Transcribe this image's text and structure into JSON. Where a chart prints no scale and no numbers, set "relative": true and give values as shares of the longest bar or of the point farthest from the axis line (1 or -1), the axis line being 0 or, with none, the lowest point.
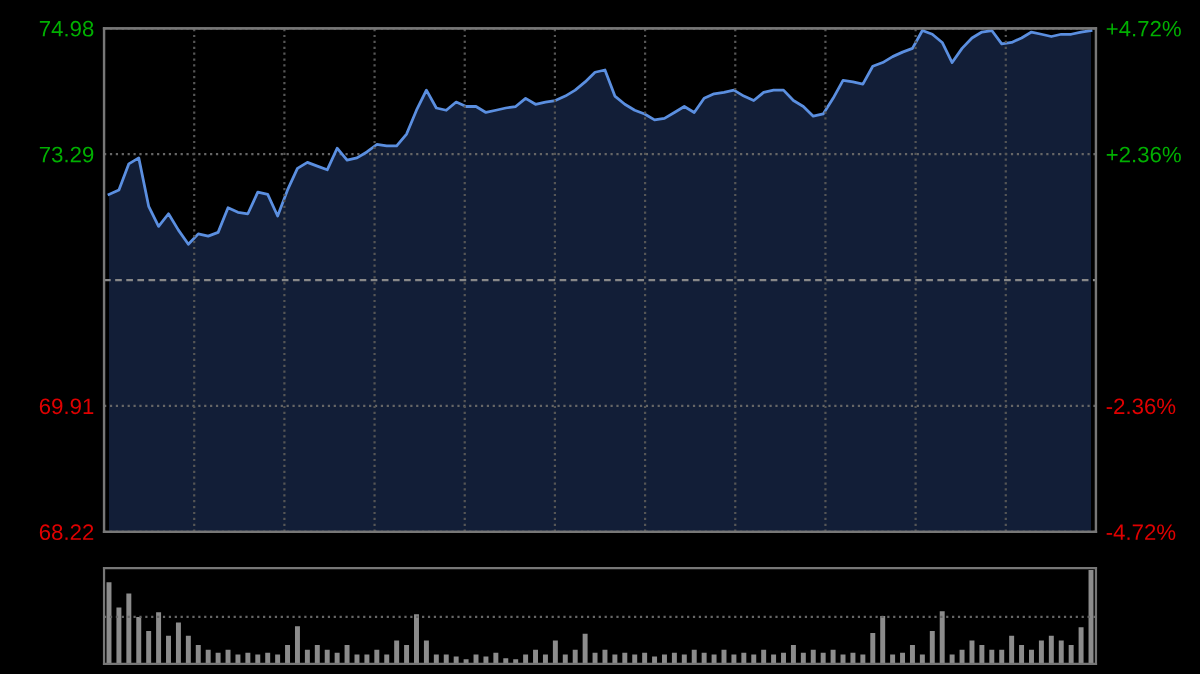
{
  "chart_data": [
    {
      "type": "area",
      "color": "#5b8fe0",
      "grid": true,
      "tick_labels": "y",
      "ylim": [
        68.22,
        74.98
      ],
      "yticks": [
        74.98,
        73.29,
        69.91,
        68.22
      ],
      "y2lim": [
        -4.72,
        4.72
      ],
      "y2ticks": [
        {
          "value": 4.72,
          "label": "+4.72%"
        },
        {
          "value": 2.36,
          "label": "+2.36%"
        },
        {
          "value": -2.36,
          "label": "-2.36%"
        },
        {
          "value": -4.72,
          "label": "-4.72%"
        }
      ],
      "ref_lines": [
        {
          "axis": "y",
          "value": 71.6,
          "line_style": "dashed",
          "color": "#888888"
        }
      ],
      "categories": [
        null,
        null,
        null,
        null,
        null,
        null,
        null,
        null,
        null,
        null,
        null,
        null,
        null,
        null,
        null,
        null,
        null,
        null,
        null,
        null,
        null,
        null,
        null,
        null,
        null,
        null,
        null,
        null,
        null,
        null,
        null,
        null,
        null,
        null,
        null,
        null,
        null,
        null,
        null,
        null,
        null,
        null,
        null,
        null,
        null,
        null,
        null,
        null,
        null,
        null,
        null,
        null,
        null,
        null,
        null,
        null,
        null,
        null,
        null,
        null,
        null,
        null,
        null,
        null,
        null,
        null,
        null,
        null,
        null,
        null,
        null,
        null,
        null,
        null,
        null,
        null,
        null,
        null,
        null,
        null,
        null,
        null,
        null,
        null,
        null,
        null,
        null,
        null,
        null,
        null,
        null,
        null,
        null,
        null,
        null,
        null,
        null,
        null,
        null,
        null
      ],
      "values": [
        72.75,
        72.81,
        73.16,
        73.24,
        72.59,
        72.32,
        72.49,
        72.27,
        72.08,
        72.22,
        72.19,
        72.24,
        72.57,
        72.51,
        72.49,
        72.78,
        72.75,
        72.46,
        72.81,
        73.1,
        73.18,
        73.13,
        73.08,
        73.37,
        73.21,
        73.24,
        73.32,
        73.42,
        73.4,
        73.4,
        73.56,
        73.88,
        74.15,
        73.91,
        73.88,
        73.99,
        73.93,
        73.93,
        73.85,
        73.88,
        73.91,
        73.93,
        74.04,
        73.96,
        73.99,
        74.01,
        74.07,
        74.15,
        74.26,
        74.39,
        74.42,
        74.07,
        73.96,
        73.88,
        73.83,
        73.75,
        73.77,
        73.85,
        73.93,
        73.85,
        74.04,
        74.1,
        74.12,
        74.15,
        74.07,
        74.01,
        74.12,
        74.15,
        74.15,
        74.01,
        73.93,
        73.8,
        73.83,
        74.04,
        74.28,
        74.26,
        74.23,
        74.47,
        74.52,
        74.6,
        74.66,
        74.71,
        74.95,
        74.9,
        74.79,
        74.52,
        74.71,
        74.85,
        74.93,
        74.95,
        74.77,
        74.79,
        74.85,
        74.93,
        74.9,
        74.87,
        74.9,
        74.9,
        74.93,
        74.95
      ]
    },
    {
      "type": "bar",
      "relative": true,
      "color": "#8c8c8c",
      "tick_labels": false,
      "ref_lines": [
        {
          "axis": "y",
          "value": 0.5,
          "line_style": "dotted",
          "color": "#666666"
        }
      ],
      "categories": [
        null,
        null,
        null,
        null,
        null,
        null,
        null,
        null,
        null,
        null,
        null,
        null,
        null,
        null,
        null,
        null,
        null,
        null,
        null,
        null,
        null,
        null,
        null,
        null,
        null,
        null,
        null,
        null,
        null,
        null,
        null,
        null,
        null,
        null,
        null,
        null,
        null,
        null,
        null,
        null,
        null,
        null,
        null,
        null,
        null,
        null,
        null,
        null,
        null,
        null,
        null,
        null,
        null,
        null,
        null,
        null,
        null,
        null,
        null,
        null,
        null,
        null,
        null,
        null,
        null,
        null,
        null,
        null,
        null,
        null,
        null,
        null,
        null,
        null,
        null,
        null,
        null,
        null,
        null,
        null,
        null,
        null,
        null,
        null,
        null,
        null,
        null,
        null,
        null,
        null,
        null,
        null,
        null,
        null,
        null,
        null,
        null,
        null,
        null,
        null
      ],
      "values": [
        0.87,
        0.6,
        0.75,
        0.5,
        0.35,
        0.55,
        0.3,
        0.44,
        0.3,
        0.2,
        0.15,
        0.12,
        0.15,
        0.1,
        0.12,
        0.1,
        0.12,
        0.1,
        0.2,
        0.4,
        0.15,
        0.2,
        0.15,
        0.12,
        0.2,
        0.1,
        0.1,
        0.15,
        0.1,
        0.25,
        0.2,
        0.53,
        0.25,
        0.1,
        0.1,
        0.08,
        0.05,
        0.1,
        0.08,
        0.12,
        0.06,
        0.05,
        0.1,
        0.15,
        0.1,
        0.25,
        0.1,
        0.15,
        0.32,
        0.12,
        0.15,
        0.1,
        0.12,
        0.1,
        0.12,
        0.08,
        0.1,
        0.12,
        0.1,
        0.15,
        0.12,
        0.1,
        0.15,
        0.1,
        0.12,
        0.1,
        0.15,
        0.1,
        0.12,
        0.2,
        0.12,
        0.15,
        0.12,
        0.15,
        0.1,
        0.12,
        0.1,
        0.33,
        0.51,
        0.1,
        0.12,
        0.2,
        0.1,
        0.35,
        0.56,
        0.1,
        0.15,
        0.25,
        0.2,
        0.15,
        0.15,
        0.3,
        0.2,
        0.15,
        0.25,
        0.3,
        0.25,
        0.2,
        0.39,
        1
      ]
    }
  ]
}
